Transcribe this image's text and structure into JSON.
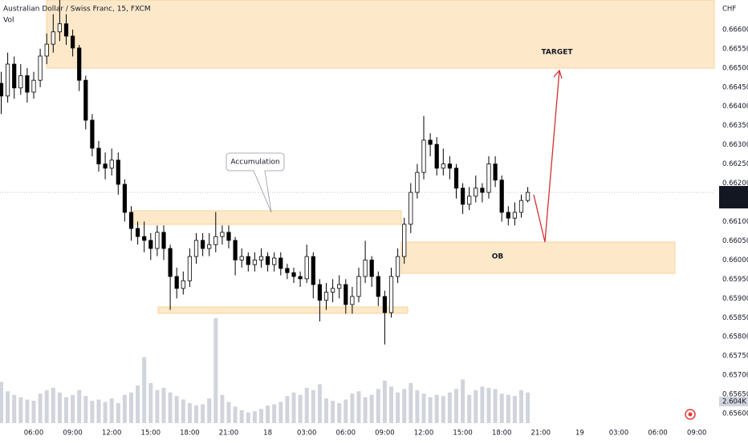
{
  "chart_data": {
    "type": "candlestick",
    "title": "Australian Dollar / Swiss Franc, 15, FXCM",
    "subtitle": "Vol",
    "currency": "CHF",
    "x_labels": [
      "06:00",
      "09:00",
      "12:00",
      "15:00",
      "18:00",
      "21:00",
      "18",
      "03:00",
      "06:00",
      "09:00",
      "12:00",
      "15:00",
      "18:00",
      "21:00",
      "19",
      "03:00",
      "06:00",
      "09:00"
    ],
    "open": [
      0.6646,
      0.66427,
      0.6651,
      0.66448,
      0.6648,
      0.66437,
      0.66468,
      0.66531,
      0.66562,
      0.66594,
      0.66615,
      0.66583,
      0.66552,
      0.66468,
      0.66364,
      0.66291,
      0.6625,
      0.66239,
      0.6626,
      0.66197,
      0.66124,
      0.66082,
      0.66061,
      0.66051,
      0.6603,
      0.66072,
      0.6603,
      0.65957,
      0.65926,
      0.65946,
      0.66009,
      0.66051,
      0.6603,
      0.6604,
      0.66061,
      0.66072,
      0.66051,
      0.66,
      0.66009,
      0.65988,
      0.66,
      0.66009,
      0.65988,
      0.66005,
      0.65978,
      0.65967,
      0.65957,
      0.65951,
      0.66009,
      0.65936,
      0.65895,
      0.65916,
      0.65926,
      0.65936,
      0.65884,
      0.65905,
      0.65957,
      0.66,
      0.65957,
      0.65905,
      0.65863,
      0.65957,
      0.66009,
      0.66093,
      0.66176,
      0.66228,
      0.66312,
      0.66301,
      0.66239,
      0.6625,
      0.66239,
      0.66187,
      0.66145,
      0.66166,
      0.66187,
      0.66176,
      0.6625,
      0.66208,
      0.66124,
      0.66109,
      0.66124,
      0.66155
    ],
    "high": [
      0.6649,
      0.6654,
      0.6653,
      0.6651,
      0.665,
      0.6649,
      0.6655,
      0.6659,
      0.6664,
      0.66677,
      0.6664,
      0.666,
      0.6656,
      0.6648,
      0.6638,
      0.6631,
      0.6628,
      0.6629,
      0.6628,
      0.6621,
      0.6614,
      0.661,
      0.661,
      0.6607,
      0.6609,
      0.6609,
      0.6604,
      0.6598,
      0.6597,
      0.6603,
      0.6607,
      0.6607,
      0.6607,
      0.66125,
      0.6609,
      0.6609,
      0.6606,
      0.6603,
      0.6602,
      0.6602,
      0.6603,
      0.6602,
      0.6602,
      0.6602,
      0.6599,
      0.6598,
      0.6597,
      0.6604,
      0.6602,
      0.6595,
      0.6594,
      0.6595,
      0.6596,
      0.6595,
      0.6593,
      0.6598,
      0.6605,
      0.6601,
      0.6597,
      0.6592,
      0.6598,
      0.6603,
      0.6611,
      0.662,
      0.6625,
      0.66375,
      0.6633,
      0.6632,
      0.6629,
      0.6627,
      0.6625,
      0.662,
      0.6619,
      0.6622,
      0.662,
      0.6627,
      0.6627,
      0.6622,
      0.6614,
      0.6615,
      0.6617,
      0.6619
    ],
    "low": [
      0.6638,
      0.6641,
      0.6642,
      0.6643,
      0.6641,
      0.6642,
      0.6645,
      0.6651,
      0.6654,
      0.6657,
      0.6656,
      0.6653,
      0.6644,
      0.6634,
      0.6627,
      0.6623,
      0.6621,
      0.6622,
      0.6617,
      0.661,
      0.6605,
      0.6604,
      0.6602,
      0.66,
      0.6601,
      0.66,
      0.6587,
      0.659,
      0.6591,
      0.6593,
      0.6599,
      0.6601,
      0.6601,
      0.6602,
      0.6604,
      0.6603,
      0.6596,
      0.6598,
      0.6597,
      0.6597,
      0.6598,
      0.6597,
      0.6597,
      0.6596,
      0.6595,
      0.6594,
      0.6593,
      0.6594,
      0.659,
      0.6584,
      0.6587,
      0.6589,
      0.659,
      0.6586,
      0.6586,
      0.6589,
      0.6594,
      0.6593,
      0.6588,
      0.6578,
      0.6585,
      0.6594,
      0.6599,
      0.6607,
      0.6616,
      0.6621,
      0.6627,
      0.6622,
      0.6622,
      0.6621,
      0.6616,
      0.6612,
      0.6613,
      0.6615,
      0.6615,
      0.6616,
      0.6619,
      0.661,
      0.6609,
      0.6609,
      0.6611,
      0.6615
    ],
    "close": [
      0.66427,
      0.6651,
      0.66448,
      0.6648,
      0.66437,
      0.66468,
      0.66531,
      0.66562,
      0.66594,
      0.66615,
      0.66583,
      0.66552,
      0.66468,
      0.66364,
      0.66291,
      0.6625,
      0.66239,
      0.6626,
      0.66197,
      0.66124,
      0.66082,
      0.66061,
      0.66051,
      0.6603,
      0.66072,
      0.6603,
      0.65957,
      0.65926,
      0.65946,
      0.66009,
      0.66051,
      0.6603,
      0.6604,
      0.66061,
      0.66072,
      0.66051,
      0.66,
      0.66009,
      0.65988,
      0.66,
      0.66009,
      0.65988,
      0.66005,
      0.65978,
      0.65967,
      0.65957,
      0.65951,
      0.66009,
      0.65936,
      0.65895,
      0.65916,
      0.65926,
      0.65936,
      0.65884,
      0.65905,
      0.65957,
      0.66,
      0.65957,
      0.65905,
      0.65863,
      0.65957,
      0.66009,
      0.66093,
      0.66176,
      0.66228,
      0.66312,
      0.66301,
      0.66239,
      0.6625,
      0.66239,
      0.66187,
      0.66145,
      0.66166,
      0.66187,
      0.66176,
      0.6625,
      0.66208,
      0.66124,
      0.66109,
      0.66124,
      0.66155,
      0.66176
    ],
    "volume": [
      3500,
      2700,
      2400,
      2200,
      2000,
      1900,
      2500,
      2800,
      3000,
      2600,
      2200,
      2400,
      2800,
      2300,
      1900,
      2000,
      1800,
      2100,
      1700,
      2400,
      2600,
      3200,
      5600,
      3400,
      2800,
      3000,
      2600,
      2300,
      2000,
      1700,
      1500,
      1600,
      2100,
      8900,
      2400,
      1800,
      1400,
      1100,
      900,
      1000,
      1200,
      1500,
      1600,
      1800,
      2300,
      2600,
      2400,
      3000,
      2800,
      3300,
      2100,
      1900,
      1700,
      2000,
      2500,
      2700,
      2200,
      2400,
      2900,
      3600,
      3100,
      2600,
      2900,
      3400,
      2800,
      2500,
      2200,
      2400,
      2300,
      2600,
      2900,
      3700,
      2400,
      2800,
      3100,
      3000,
      2900,
      2500,
      2400,
      2300,
      2800,
      2604
    ],
    "ylim": [
      0.6555,
      0.66677
    ],
    "yticks": [
      {
        "value": 0.656,
        "label": "0.65600"
      },
      {
        "value": 0.6565,
        "label": "0.65650"
      },
      {
        "value": 0.657,
        "label": "0.65700"
      },
      {
        "value": 0.6575,
        "label": "0.65750"
      },
      {
        "value": 0.658,
        "label": "0.65800"
      },
      {
        "value": 0.6585,
        "label": "0.65850"
      },
      {
        "value": 0.659,
        "label": "0.65900"
      },
      {
        "value": 0.6595,
        "label": "0.65950"
      },
      {
        "value": 0.66,
        "label": "0.66000"
      },
      {
        "value": 0.6605,
        "label": "0.66050"
      },
      {
        "value": 0.661,
        "label": "0.66100"
      },
      {
        "value": 0.6615,
        "label": "0.66150"
      },
      {
        "value": 0.662,
        "label": "0.66200"
      },
      {
        "value": 0.6625,
        "label": "0.66250"
      },
      {
        "value": 0.663,
        "label": "0.66300"
      },
      {
        "value": 0.6635,
        "label": "0.66350"
      },
      {
        "value": 0.664,
        "label": "0.66400"
      },
      {
        "value": 0.6645,
        "label": "0.66450"
      },
      {
        "value": 0.665,
        "label": "0.66500"
      },
      {
        "value": 0.6655,
        "label": "0.66550"
      },
      {
        "value": 0.666,
        "label": "0.66600"
      }
    ],
    "last_price": {
      "value": 0.66176,
      "label": "0.66176"
    },
    "countdown": "01:22",
    "volume_label": {
      "value": 2604,
      "label": "2.604K"
    },
    "annotations": {
      "accumulation": "Accumulation",
      "ob": "OB",
      "target": "TARGET"
    }
  }
}
